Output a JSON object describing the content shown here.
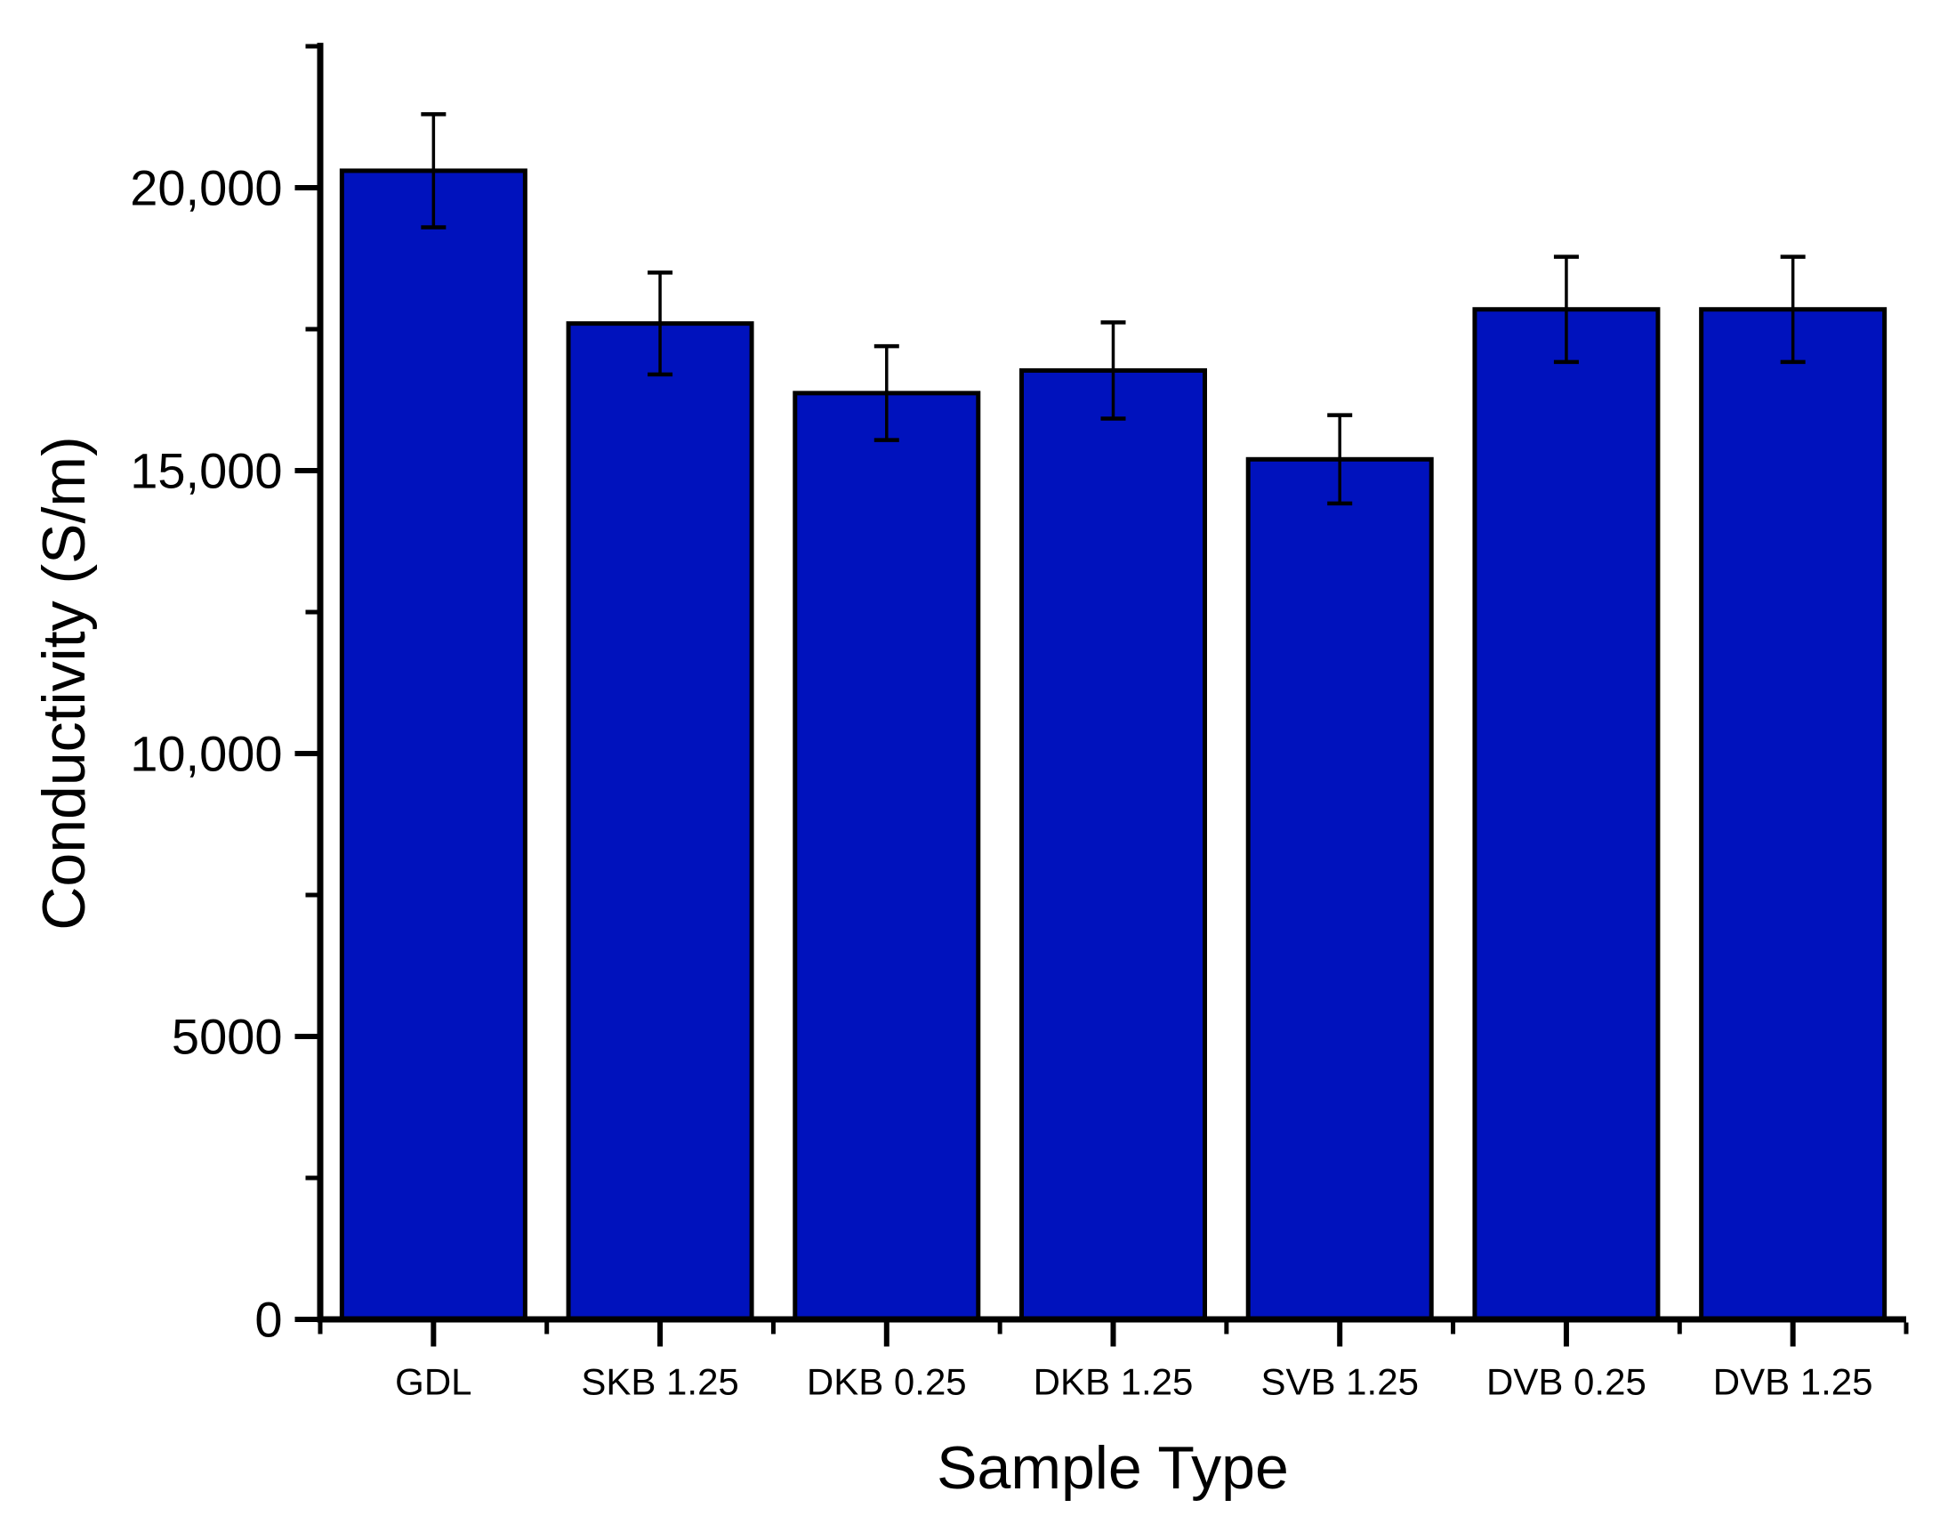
{
  "chart_data": {
    "type": "bar",
    "title": "",
    "xlabel": "Sample Type",
    "ylabel": "Conductivity (S/m)",
    "categories": [
      "GDL",
      "SKB 1.25",
      "DKB 0.25",
      "DKB 1.25",
      "SVB 1.25",
      "DVB 0.25",
      "DVB 1.25"
    ],
    "values": [
      20300,
      17600,
      16370,
      16770,
      15200,
      17850,
      17850
    ],
    "error_bars": [
      1000,
      900,
      830,
      850,
      780,
      930,
      930
    ],
    "ylim": [
      0,
      22560
    ],
    "y_major_ticks": [
      0,
      5000,
      10000,
      15000,
      20000
    ],
    "y_major_tick_labels": [
      "0",
      "5000",
      "10,000",
      "15,000",
      "20,000"
    ],
    "y_minor_ticks": [
      2500,
      7500,
      12500,
      17500,
      22500
    ],
    "grid": false,
    "legend": "none",
    "bar_color": "#0012BD",
    "bar_border_color": "#000000",
    "error_bar_color": "#000000",
    "axis_color": "#000000",
    "text_color": "#000000",
    "background_color": "#ffffff"
  }
}
